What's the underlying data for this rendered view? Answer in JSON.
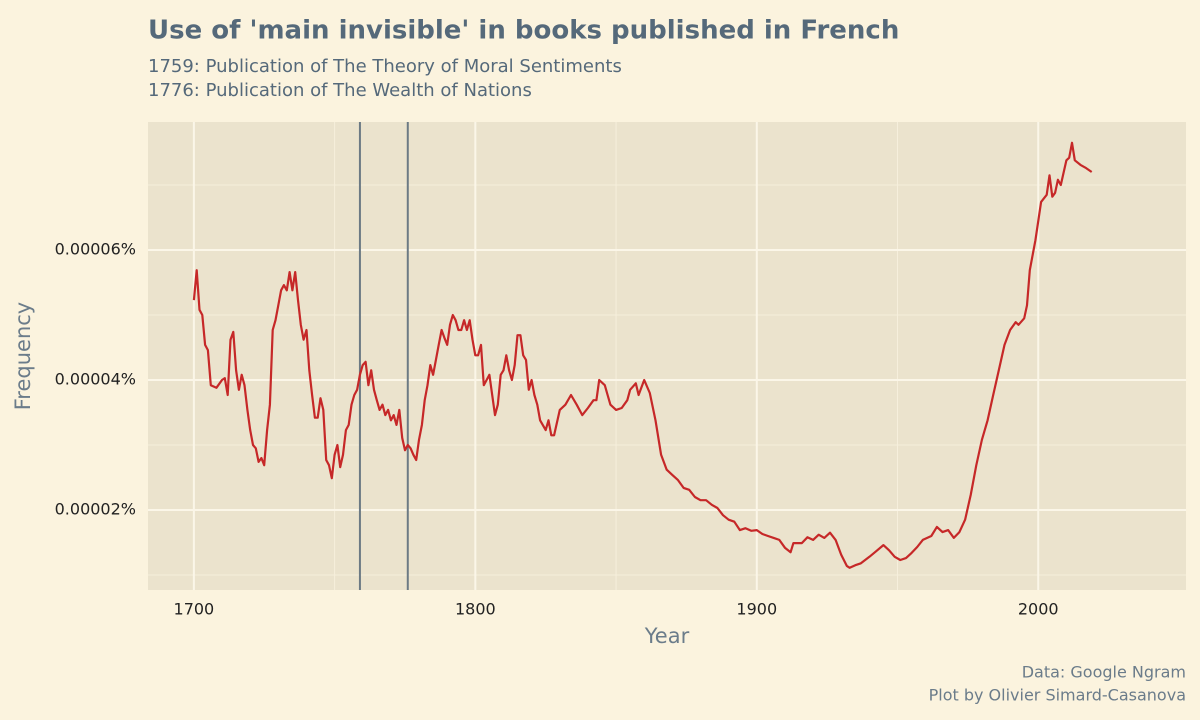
{
  "chart_data": {
    "type": "line",
    "title": "Use of 'main invisible' in books published in French",
    "subtitle": [
      "1759: Publication of The Theory of Moral Sentiments",
      "1776: Publication of The Wealth of Nations"
    ],
    "x_label": "Year",
    "y_label": "Frequency",
    "caption": [
      "Data: Google Ngram",
      "Plot by Olivier Simard-Casanova"
    ],
    "color": "#c62828",
    "vline_color": "#6c7a84",
    "vlines": [
      1759,
      1776
    ],
    "xlim": [
      1683.7,
      2052.5
    ],
    "xticks": [
      1700,
      1800,
      1900,
      2000
    ],
    "xminor": [
      1750,
      1850,
      1950
    ],
    "ylim": [
      7.69e-06,
      7.97e-05
    ],
    "yticks": [
      {
        "value": 2e-05,
        "label": "0.00002%"
      },
      {
        "value": 4e-05,
        "label": "0.00004%"
      },
      {
        "value": 6e-05,
        "label": "0.00006%"
      }
    ],
    "yminor": [
      1e-05,
      3e-05,
      5e-05,
      7e-05
    ],
    "grid": true,
    "x": [
      1700,
      1701,
      1702,
      1703,
      1704,
      1705,
      1706,
      1708,
      1710,
      1711,
      1712,
      1713,
      1714,
      1715,
      1716,
      1717,
      1718,
      1719,
      1720,
      1721,
      1722,
      1723,
      1724,
      1725,
      1726,
      1727,
      1728,
      1729,
      1730,
      1731,
      1732,
      1733,
      1734,
      1735,
      1736,
      1737,
      1738,
      1739,
      1740,
      1741,
      1742,
      1743,
      1744,
      1745,
      1746,
      1747,
      1748,
      1749,
      1750,
      1751,
      1752,
      1753,
      1754,
      1755,
      1756,
      1757,
      1758,
      1759,
      1760,
      1761,
      1762,
      1763,
      1764,
      1765,
      1766,
      1767,
      1768,
      1769,
      1770,
      1771,
      1772,
      1773,
      1774,
      1775,
      1776,
      1777,
      1778,
      1779,
      1780,
      1781,
      1782,
      1783,
      1784,
      1785,
      1786,
      1787,
      1788,
      1789,
      1790,
      1791,
      1792,
      1793,
      1794,
      1795,
      1796,
      1797,
      1798,
      1799,
      1800,
      1801,
      1802,
      1803,
      1804,
      1805,
      1806,
      1807,
      1808,
      1809,
      1810,
      1811,
      1812,
      1813,
      1814,
      1815,
      1816,
      1817,
      1818,
      1819,
      1820,
      1821,
      1822,
      1823,
      1825,
      1826,
      1827,
      1828,
      1830,
      1832,
      1834,
      1836,
      1838,
      1840,
      1842,
      1843,
      1844,
      1846,
      1847,
      1848,
      1850,
      1852,
      1854,
      1855,
      1857,
      1858,
      1860,
      1862,
      1864,
      1866,
      1868,
      1870,
      1872,
      1874,
      1876,
      1878,
      1880,
      1882,
      1884,
      1886,
      1888,
      1890,
      1892,
      1894,
      1896,
      1898,
      1900,
      1902,
      1904,
      1906,
      1908,
      1910,
      1912,
      1913,
      1916,
      1918,
      1920,
      1922,
      1924,
      1926,
      1928,
      1930,
      1932,
      1933,
      1935,
      1937,
      1940,
      1942,
      1945,
      1947,
      1949,
      1951,
      1953,
      1955,
      1957,
      1959,
      1962,
      1964,
      1966,
      1968,
      1970,
      1972,
      1974,
      1976,
      1978,
      1980,
      1982,
      1984,
      1986,
      1988,
      1990,
      1992,
      1993,
      1995,
      1996,
      1997,
      1999,
      2001,
      2003,
      2004,
      2005,
      2006,
      2007,
      2008,
      2010,
      2011,
      2012,
      2013,
      2015,
      2017,
      2019
    ],
    "values": [
      5.23e-05,
      5.69e-05,
      5.08e-05,
      5e-05,
      4.54e-05,
      4.46e-05,
      3.92e-05,
      3.88e-05,
      4e-05,
      4.03e-05,
      3.77e-05,
      4.62e-05,
      4.74e-05,
      4.15e-05,
      3.85e-05,
      4.08e-05,
      3.92e-05,
      3.54e-05,
      3.23e-05,
      3e-05,
      2.95e-05,
      2.74e-05,
      2.8e-05,
      2.69e-05,
      3.23e-05,
      3.62e-05,
      4.77e-05,
      4.92e-05,
      5.15e-05,
      5.38e-05,
      5.46e-05,
      5.38e-05,
      5.66e-05,
      5.38e-05,
      5.66e-05,
      5.23e-05,
      4.85e-05,
      4.62e-05,
      4.77e-05,
      4.15e-05,
      3.77e-05,
      3.42e-05,
      3.42e-05,
      3.72e-05,
      3.54e-05,
      2.77e-05,
      2.69e-05,
      2.49e-05,
      2.85e-05,
      3e-05,
      2.66e-05,
      2.85e-05,
      3.23e-05,
      3.31e-05,
      3.62e-05,
      3.77e-05,
      3.85e-05,
      4.08e-05,
      4.23e-05,
      4.28e-05,
      3.92e-05,
      4.15e-05,
      3.85e-05,
      3.69e-05,
      3.54e-05,
      3.62e-05,
      3.46e-05,
      3.54e-05,
      3.38e-05,
      3.46e-05,
      3.31e-05,
      3.54e-05,
      3.11e-05,
      2.92e-05,
      3e-05,
      2.95e-05,
      2.85e-05,
      2.77e-05,
      3.08e-05,
      3.31e-05,
      3.69e-05,
      3.92e-05,
      4.23e-05,
      4.08e-05,
      4.31e-05,
      4.54e-05,
      4.77e-05,
      4.65e-05,
      4.54e-05,
      4.85e-05,
      5e-05,
      4.92e-05,
      4.77e-05,
      4.77e-05,
      4.92e-05,
      4.77e-05,
      4.92e-05,
      4.62e-05,
      4.38e-05,
      4.38e-05,
      4.54e-05,
      3.92e-05,
      4e-05,
      4.08e-05,
      3.77e-05,
      3.46e-05,
      3.62e-05,
      4.08e-05,
      4.15e-05,
      4.38e-05,
      4.15e-05,
      4e-05,
      4.23e-05,
      4.69e-05,
      4.69e-05,
      4.38e-05,
      4.31e-05,
      3.85e-05,
      4e-05,
      3.77e-05,
      3.62e-05,
      3.38e-05,
      3.23e-05,
      3.38e-05,
      3.15e-05,
      3.15e-05,
      3.54e-05,
      3.62e-05,
      3.77e-05,
      3.62e-05,
      3.46e-05,
      3.57e-05,
      3.69e-05,
      3.69e-05,
      4e-05,
      3.92e-05,
      3.77e-05,
      3.62e-05,
      3.54e-05,
      3.57e-05,
      3.69e-05,
      3.85e-05,
      3.95e-05,
      3.77e-05,
      4e-05,
      3.8e-05,
      3.38e-05,
      2.85e-05,
      2.62e-05,
      2.54e-05,
      2.46e-05,
      2.34e-05,
      2.31e-05,
      2.2e-05,
      2.15e-05,
      2.15e-05,
      2.08e-05,
      2.03e-05,
      1.92e-05,
      1.85e-05,
      1.82e-05,
      1.69e-05,
      1.72e-05,
      1.68e-05,
      1.69e-05,
      1.63e-05,
      1.6e-05,
      1.57e-05,
      1.54e-05,
      1.42e-05,
      1.35e-05,
      1.49e-05,
      1.49e-05,
      1.58e-05,
      1.54e-05,
      1.62e-05,
      1.57e-05,
      1.65e-05,
      1.54e-05,
      1.31e-05,
      1.14e-05,
      1.11e-05,
      1.15e-05,
      1.18e-05,
      1.28e-05,
      1.35e-05,
      1.46e-05,
      1.38e-05,
      1.28e-05,
      1.23e-05,
      1.26e-05,
      1.34e-05,
      1.43e-05,
      1.54e-05,
      1.6e-05,
      1.74e-05,
      1.66e-05,
      1.69e-05,
      1.57e-05,
      1.66e-05,
      1.85e-05,
      2.23e-05,
      2.69e-05,
      3.08e-05,
      3.38e-05,
      3.77e-05,
      4.15e-05,
      4.54e-05,
      4.77e-05,
      4.89e-05,
      4.85e-05,
      4.95e-05,
      5.15e-05,
      5.69e-05,
      6.15e-05,
      6.74e-05,
      6.85e-05,
      7.15e-05,
      6.82e-05,
      6.88e-05,
      7.08e-05,
      7e-05,
      7.38e-05,
      7.42e-05,
      7.65e-05,
      7.38e-05,
      7.31e-05,
      7.26e-05,
      7.2e-05
    ]
  }
}
